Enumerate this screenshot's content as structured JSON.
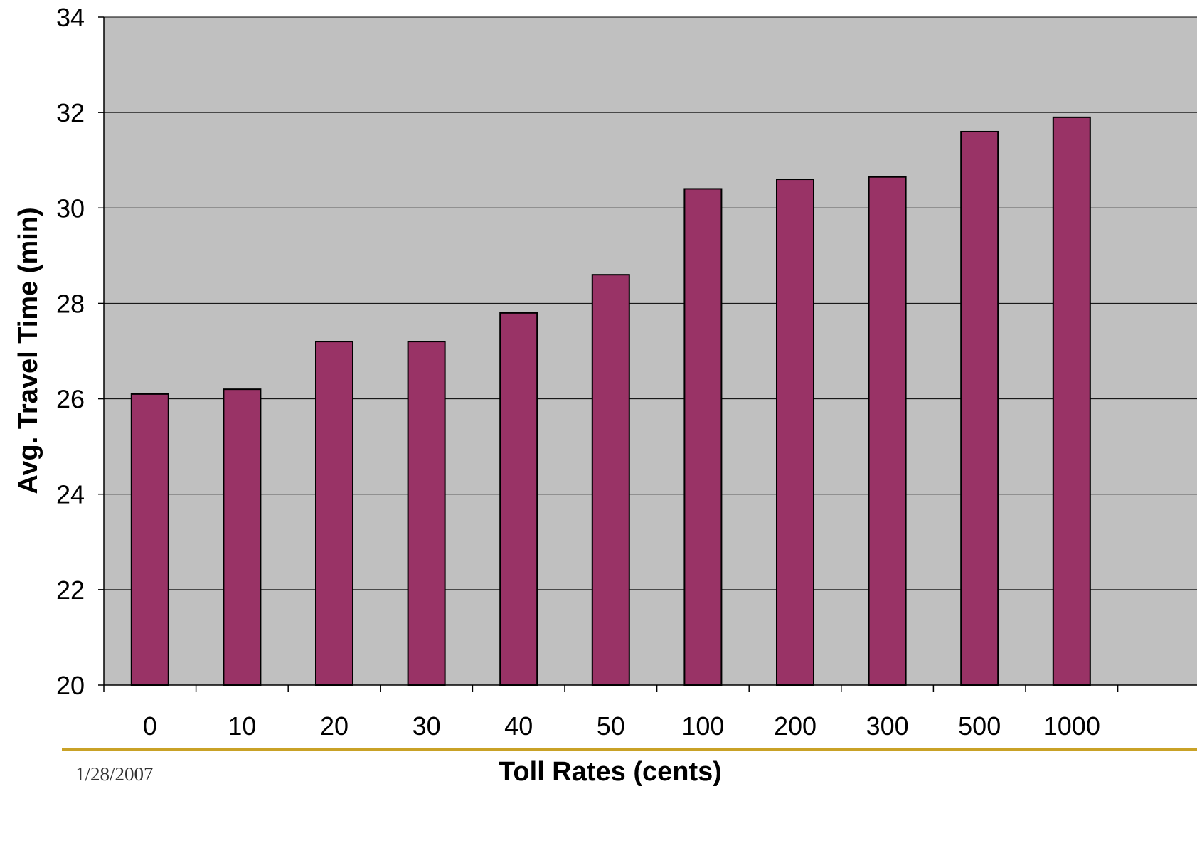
{
  "slide": {
    "date": "1/28/2007",
    "footer_rule_color": "#c9a227"
  },
  "chart_data": {
    "type": "bar",
    "title": "",
    "xlabel": "Toll Rates (cents)",
    "ylabel": "Avg. Travel Time (min)",
    "categories": [
      "0",
      "10",
      "20",
      "30",
      "40",
      "50",
      "100",
      "200",
      "300",
      "500",
      "1000"
    ],
    "values": [
      26.1,
      26.2,
      27.2,
      27.2,
      27.8,
      28.6,
      30.4,
      30.6,
      30.65,
      31.6,
      31.9
    ],
    "ylim": [
      20,
      34
    ],
    "yticks": [
      20,
      22,
      24,
      26,
      28,
      30,
      32,
      34
    ],
    "grid": true,
    "legend": "none",
    "colors": {
      "bar": "#993366",
      "plot_background": "#c0c0c0",
      "gridline": "#000000"
    }
  }
}
